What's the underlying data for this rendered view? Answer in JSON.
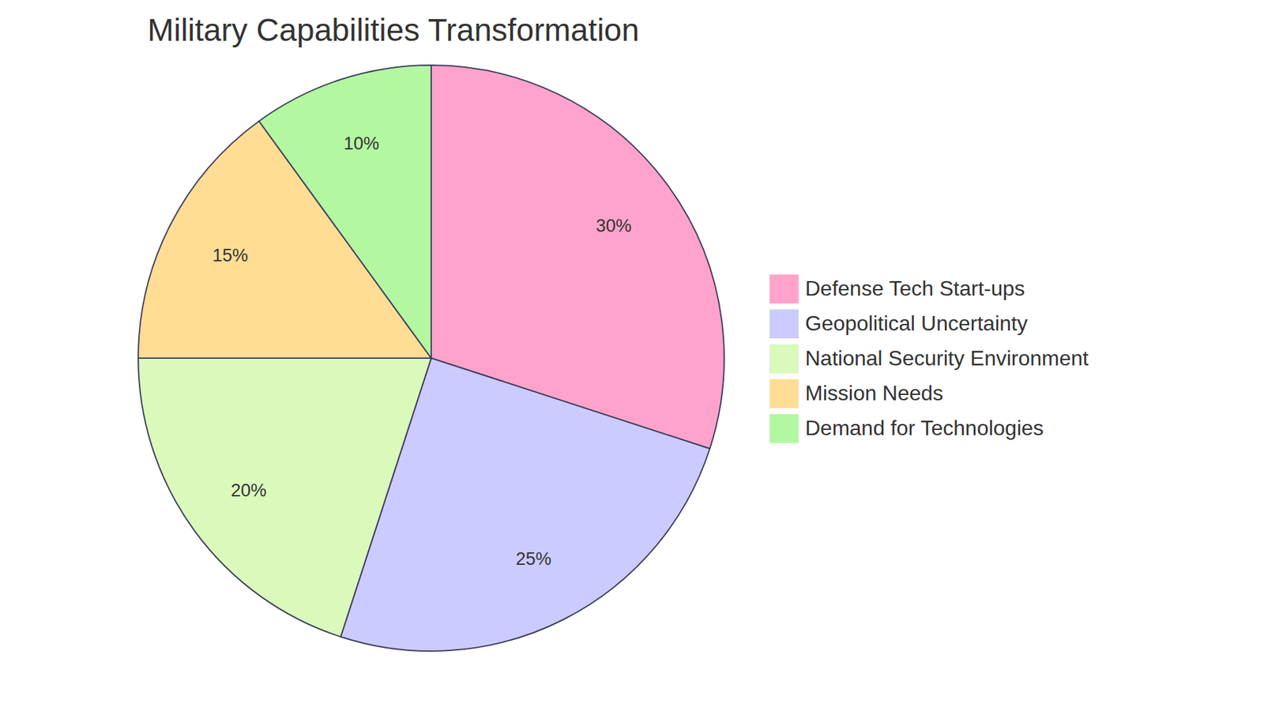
{
  "chart_data": {
    "type": "pie",
    "title": "Military Capabilities Transformation",
    "categories": [
      "Defense Tech Start-ups",
      "Geopolitical Uncertainty",
      "National Security Environment",
      "Mission Needs",
      "Demand for Technologies"
    ],
    "values": [
      30,
      25,
      20,
      15,
      10
    ],
    "value_labels": [
      "30%",
      "25%",
      "20%",
      "15%",
      "10%"
    ],
    "colors": [
      "#ffa3cc",
      "#cbcbff",
      "#daf9bb",
      "#ffdd95",
      "#b3f8a0"
    ],
    "data_labels": true,
    "legend": "right"
  }
}
